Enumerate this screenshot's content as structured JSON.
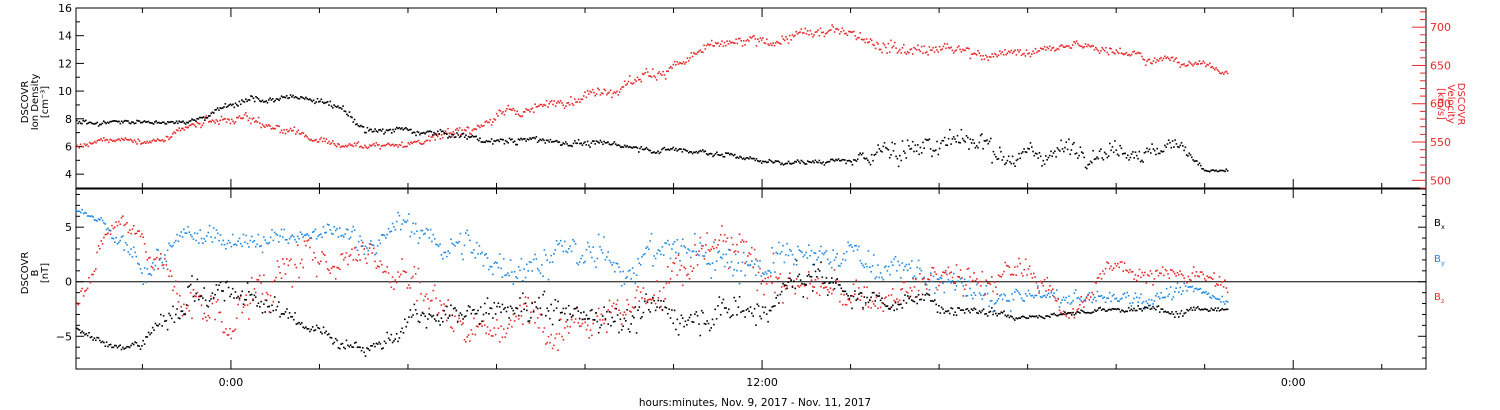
{
  "figure": {
    "xlabel": "hours:minutes, Nov.  9, 2017 - Nov. 11, 2017",
    "time_range_hours": [
      -3.5,
      27
    ],
    "x_major_ticks": [
      {
        "hour": 0,
        "label": "0:00"
      },
      {
        "hour": 12,
        "label": "12:00"
      },
      {
        "hour": 24,
        "label": "0:00"
      }
    ],
    "colors": {
      "black": "#000000",
      "red": "#e8292a",
      "blue": "#1f88e0"
    }
  },
  "chart_data": [
    {
      "type": "scatter",
      "panel": "plasma",
      "y_left": {
        "label_lines": [
          "DSCOVR",
          "Ion Density",
          "[cm⁻³]"
        ],
        "ylim": [
          3,
          16
        ],
        "ticks": [
          4,
          6,
          8,
          10,
          12,
          14,
          16
        ],
        "tick_labels": [
          "4",
          "6",
          "8",
          "10",
          "12",
          "14",
          "16"
        ]
      },
      "y_right": {
        "label_lines": [
          "DSCOVR",
          "Velocity",
          "[km/s]"
        ],
        "ylim": [
          490,
          725
        ],
        "ticks": [
          500,
          550,
          600,
          650,
          700
        ],
        "tick_labels": [
          "500",
          "550",
          "600",
          "650",
          "700"
        ]
      },
      "series": [
        {
          "key": "density",
          "axis": "left",
          "color": "#000000",
          "x": [
            -3.5,
            -2.5,
            -1.5,
            -1.0,
            -0.5,
            0,
            0.5,
            1,
            1.5,
            2,
            2.5,
            3,
            3.5,
            4,
            5,
            6,
            7,
            8,
            9,
            10,
            11,
            12,
            13,
            14,
            14.5,
            15,
            16,
            17,
            18,
            19,
            20,
            21,
            21.5,
            22,
            22.5
          ],
          "y": [
            7.8,
            7.8,
            7.8,
            8.0,
            8.5,
            9.2,
            9.4,
            9.5,
            9.6,
            9.3,
            8.6,
            7.3,
            7.2,
            7.2,
            6.9,
            6.4,
            6.5,
            6.3,
            6.0,
            5.8,
            5.6,
            5.0,
            4.9,
            5.0,
            5.4,
            6.0,
            6.5,
            6.2,
            5.4,
            6.0,
            6.2,
            5.7,
            6.2,
            4.3,
            4.3
          ],
          "spread": [
            0.25,
            0.2,
            0.2,
            0.3,
            0.3,
            0.35,
            0.3,
            0.3,
            0.3,
            0.3,
            0.3,
            0.35,
            0.3,
            0.3,
            0.3,
            0.3,
            0.3,
            0.3,
            0.25,
            0.25,
            0.25,
            0.2,
            0.2,
            0.25,
            0.8,
            1.4,
            1.3,
            1.0,
            0.9,
            0.9,
            0.8,
            0.6,
            0.6,
            0.15,
            0.15
          ]
        },
        {
          "key": "velocity",
          "axis": "right",
          "color": "#e8292a",
          "x": [
            -3.5,
            -2.5,
            -1.5,
            -0.5,
            0.5,
            1,
            2,
            3,
            4,
            5,
            6,
            7,
            8,
            9,
            10,
            11,
            12,
            13,
            14,
            15,
            16,
            17,
            18,
            19,
            20,
            21,
            22,
            22.5
          ],
          "y": [
            545,
            553,
            553,
            575,
            585,
            565,
            552,
            545,
            550,
            563,
            583,
            598,
            613,
            632,
            652,
            675,
            680,
            690,
            698,
            678,
            672,
            668,
            667,
            675,
            675,
            660,
            652,
            641
          ],
          "spread": [
            5,
            4,
            4,
            8,
            8,
            8,
            6,
            5,
            6,
            8,
            8,
            8,
            8,
            10,
            10,
            8,
            8,
            8,
            8,
            12,
            10,
            8,
            6,
            8,
            8,
            6,
            5,
            4
          ]
        }
      ]
    },
    {
      "type": "scatter",
      "panel": "magnetic_field",
      "y_left": {
        "label_lines": [
          "DSCOVR",
          "B",
          "[nT]"
        ],
        "ylim": [
          -8,
          8.5
        ],
        "ticks": [
          -5,
          0,
          5
        ],
        "tick_labels": [
          "−5",
          "0",
          "5"
        ]
      },
      "zero_line": 0,
      "legend": [
        "Bx",
        "By",
        "Bz"
      ],
      "series": [
        {
          "key": "Bx",
          "name": "B",
          "sub": "x",
          "color": "#000000",
          "x": [
            -3.5,
            -3,
            -2.5,
            -2,
            -1,
            0,
            1,
            2,
            3,
            4,
            5,
            6,
            7,
            8,
            9,
            10,
            11,
            12,
            13,
            14,
            15,
            16,
            17,
            18,
            19,
            20,
            21,
            22,
            22.5
          ],
          "y": [
            -4.2,
            -5.0,
            -6.2,
            -5.5,
            -0.5,
            -1.0,
            -2.5,
            -4.5,
            -6.0,
            -4.0,
            -3.5,
            -3.0,
            -2.0,
            -3.0,
            -2.5,
            -3.0,
            -2.0,
            -2.0,
            0.5,
            -1.0,
            -1.5,
            -2.0,
            -2.5,
            -3.0,
            -2.8,
            -2.5,
            -2.6,
            -2.3,
            -2.2
          ],
          "spread": [
            0.3,
            0.4,
            0.4,
            0.8,
            2.0,
            1.5,
            1.2,
            0.8,
            0.5,
            1.5,
            1.5,
            1.5,
            2.0,
            1.5,
            2.0,
            1.5,
            2.0,
            2.0,
            2.0,
            1.2,
            1.0,
            0.8,
            0.6,
            0.3,
            0.3,
            0.4,
            0.5,
            0.3,
            0.3
          ]
        },
        {
          "key": "By",
          "name": "B",
          "sub": "y",
          "color": "#1f88e0",
          "x": [
            -3.5,
            -3,
            -2.5,
            -2,
            -1,
            0,
            1,
            2,
            3,
            4,
            5,
            6,
            7,
            8,
            9,
            10,
            11,
            12,
            13,
            14,
            15,
            16,
            17,
            18,
            19,
            20,
            21,
            22,
            22.5
          ],
          "y": [
            6.5,
            5.5,
            3.0,
            1.0,
            3.5,
            4.5,
            4.0,
            4.0,
            4.0,
            5.0,
            3.0,
            2.0,
            2.5,
            2.0,
            2.0,
            3.0,
            2.5,
            2.0,
            1.5,
            3.0,
            1.0,
            0.0,
            -1.5,
            -1.5,
            -1.5,
            -1.5,
            -1.0,
            -1.0,
            -1.5
          ],
          "spread": [
            0.3,
            0.5,
            1.0,
            1.5,
            1.5,
            1.2,
            1.0,
            1.2,
            1.5,
            1.5,
            2.0,
            2.0,
            2.0,
            2.0,
            2.0,
            2.0,
            2.0,
            2.0,
            2.0,
            1.5,
            1.5,
            1.5,
            1.5,
            1.2,
            1.0,
            1.0,
            0.8,
            0.5,
            0.5
          ]
        },
        {
          "key": "Bz",
          "name": "B",
          "sub": "z",
          "color": "#e8292a",
          "x": [
            -3.5,
            -3,
            -2.5,
            -2,
            -1,
            0,
            1,
            2,
            3,
            4,
            5,
            6,
            7,
            8,
            9,
            10,
            11,
            12,
            13,
            14,
            15,
            16,
            17,
            18,
            19,
            20,
            21,
            22,
            22.5
          ],
          "y": [
            -2.0,
            3.0,
            5.5,
            4.5,
            -2.5,
            -3.0,
            0.5,
            2.0,
            3.5,
            0.5,
            -3.0,
            -4.0,
            -3.0,
            -2.0,
            -2.0,
            0.5,
            3.0,
            1.0,
            -0.5,
            -1.5,
            -1.5,
            0.5,
            0.0,
            1.0,
            -2.5,
            1.5,
            1.0,
            0.0,
            -1.0
          ],
          "spread": [
            1.0,
            1.5,
            1.0,
            1.5,
            2.5,
            2.5,
            2.5,
            2.0,
            2.0,
            2.5,
            2.0,
            2.0,
            2.0,
            2.0,
            2.5,
            2.5,
            2.5,
            2.5,
            2.0,
            2.0,
            1.8,
            1.5,
            1.5,
            1.5,
            1.0,
            1.2,
            1.0,
            1.0,
            1.0
          ]
        }
      ]
    }
  ]
}
